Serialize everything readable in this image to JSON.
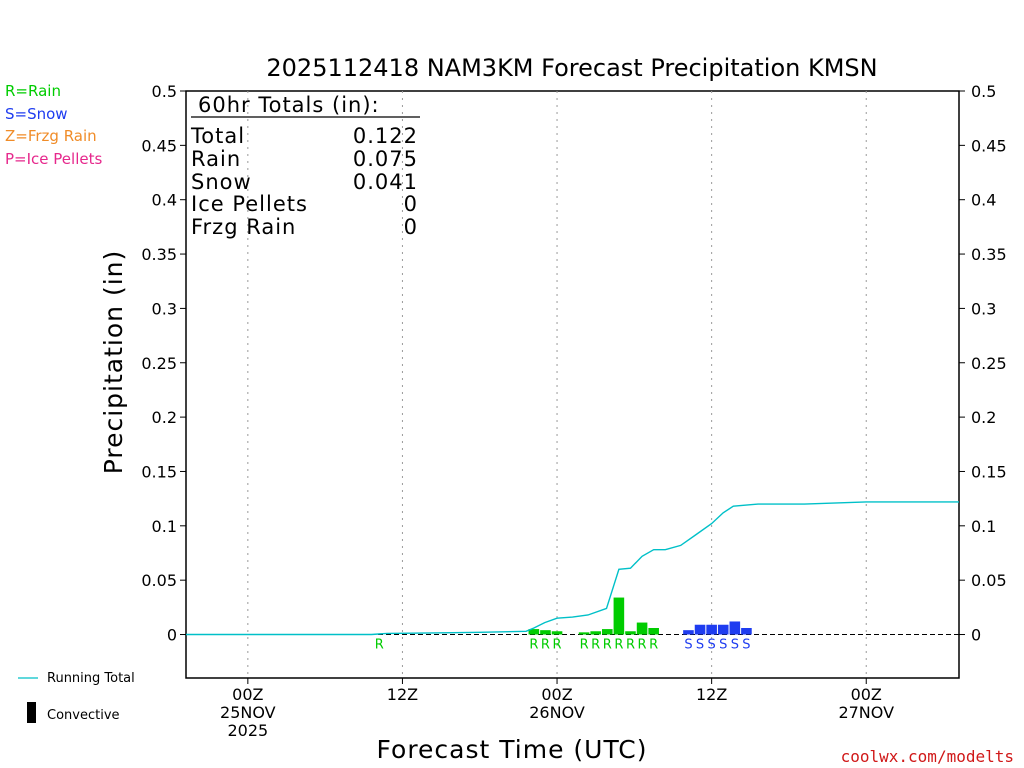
{
  "chart_data": {
    "type": "bar",
    "title": "2025112418 NAM3KM Forecast Precipitation KMSN",
    "xlabel": "Forecast Time (UTC)",
    "ylabel": "Precipitation (in)",
    "ylim": [
      -0.04,
      0.5
    ],
    "yticks": [
      "0.5",
      "0.45",
      "0.4",
      "0.35",
      "0.3",
      "0.25",
      "0.2",
      "0.15",
      "0.1",
      "0.05",
      "0"
    ],
    "ytick_values": [
      0.5,
      0.45,
      0.4,
      0.35,
      0.3,
      0.25,
      0.2,
      0.15,
      0.1,
      0.05,
      0
    ],
    "x_hours_range": [
      -4,
      46
    ],
    "xticks": [
      {
        "hour": 0,
        "lines": [
          "00Z",
          "25NOV",
          "2025"
        ]
      },
      {
        "hour": 10,
        "lines": [
          "12Z",
          "",
          ""
        ]
      },
      {
        "hour": 20,
        "lines": [
          "00Z",
          "26NOV",
          ""
        ]
      },
      {
        "hour": 30,
        "lines": [
          "12Z",
          "",
          ""
        ]
      },
      {
        "hour": 40,
        "lines": [
          "00Z",
          "27NOV",
          ""
        ]
      }
    ],
    "series": [
      {
        "name": "Rain",
        "color": "#00cc00",
        "points": [
          [
            18.5,
            0.005
          ],
          [
            19.25,
            0.004
          ],
          [
            20.0,
            0.003
          ],
          [
            21.75,
            0.002
          ],
          [
            22.5,
            0.003
          ],
          [
            23.25,
            0.005
          ],
          [
            24.0,
            0.034
          ],
          [
            24.75,
            0.003
          ],
          [
            25.5,
            0.011
          ],
          [
            26.25,
            0.006
          ]
        ]
      },
      {
        "name": "Snow",
        "color": "#1e3cf0",
        "points": [
          [
            28.5,
            0.004
          ],
          [
            29.25,
            0.009
          ],
          [
            30.0,
            0.009
          ],
          [
            30.75,
            0.009
          ],
          [
            31.5,
            0.012
          ],
          [
            32.25,
            0.006
          ]
        ]
      }
    ],
    "running_total": {
      "name": "Running Total",
      "color": "#00c0c8",
      "x": [
        -4,
        2,
        8,
        9,
        12,
        15,
        18,
        18.5,
        19.2,
        20,
        21,
        22,
        23.2,
        24,
        24.75,
        25.5,
        26.25,
        27,
        28,
        29,
        30,
        30.75,
        31.4,
        33,
        36,
        40,
        44,
        46
      ],
      "y": [
        0,
        0,
        0,
        0.001,
        0.0015,
        0.002,
        0.003,
        0.006,
        0.011,
        0.015,
        0.016,
        0.018,
        0.024,
        0.06,
        0.061,
        0.072,
        0.078,
        0.078,
        0.082,
        0.092,
        0.102,
        0.112,
        0.118,
        0.12,
        0.12,
        0.122,
        0.122,
        0.122
      ]
    },
    "precip_type_markers": [
      {
        "hour": 8.5,
        "letter": "R",
        "type": "rain"
      },
      {
        "hour": 18.5,
        "letter": "R",
        "type": "rain"
      },
      {
        "hour": 19.25,
        "letter": "R",
        "type": "rain"
      },
      {
        "hour": 20.0,
        "letter": "R",
        "type": "rain"
      },
      {
        "hour": 21.75,
        "letter": "R",
        "type": "rain"
      },
      {
        "hour": 22.5,
        "letter": "R",
        "type": "rain"
      },
      {
        "hour": 23.25,
        "letter": "R",
        "type": "rain"
      },
      {
        "hour": 24.0,
        "letter": "R",
        "type": "rain"
      },
      {
        "hour": 24.75,
        "letter": "R",
        "type": "rain"
      },
      {
        "hour": 25.5,
        "letter": "R",
        "type": "rain"
      },
      {
        "hour": 26.25,
        "letter": "R",
        "type": "rain"
      },
      {
        "hour": 28.5,
        "letter": "S",
        "type": "snow"
      },
      {
        "hour": 29.25,
        "letter": "S",
        "type": "snow"
      },
      {
        "hour": 30.0,
        "letter": "S",
        "type": "snow"
      },
      {
        "hour": 30.75,
        "letter": "S",
        "type": "snow"
      },
      {
        "hour": 31.5,
        "letter": "S",
        "type": "snow"
      },
      {
        "hour": 32.25,
        "letter": "S",
        "type": "snow"
      }
    ],
    "totals_box": {
      "header": "60hr Totals (in):",
      "rows": [
        {
          "label": "Total",
          "value": "0.122"
        },
        {
          "label": "Rain",
          "value": "0.075"
        },
        {
          "label": "Snow",
          "value": "0.041"
        },
        {
          "label": "Ice Pellets",
          "value": "0"
        },
        {
          "label": "Frzg Rain",
          "value": "0"
        }
      ]
    }
  },
  "type_legend": [
    {
      "text": "R=Rain",
      "color": "#00cc00"
    },
    {
      "text": "S=Snow",
      "color": "#1e3cf0"
    },
    {
      "text": "Z=Frzg Rain",
      "color": "#f08c28"
    },
    {
      "text": "P=Ice Pellets",
      "color": "#e6288c"
    }
  ],
  "line_legend": {
    "running_total": "Running Total",
    "convective": "Convective"
  },
  "footer": "coolwx.com/modelts",
  "colors": {
    "rain": "#00cc00",
    "snow": "#1e3cf0",
    "running": "#00c0c8",
    "footer": "#d01818",
    "grid": "#9a9a9a"
  }
}
